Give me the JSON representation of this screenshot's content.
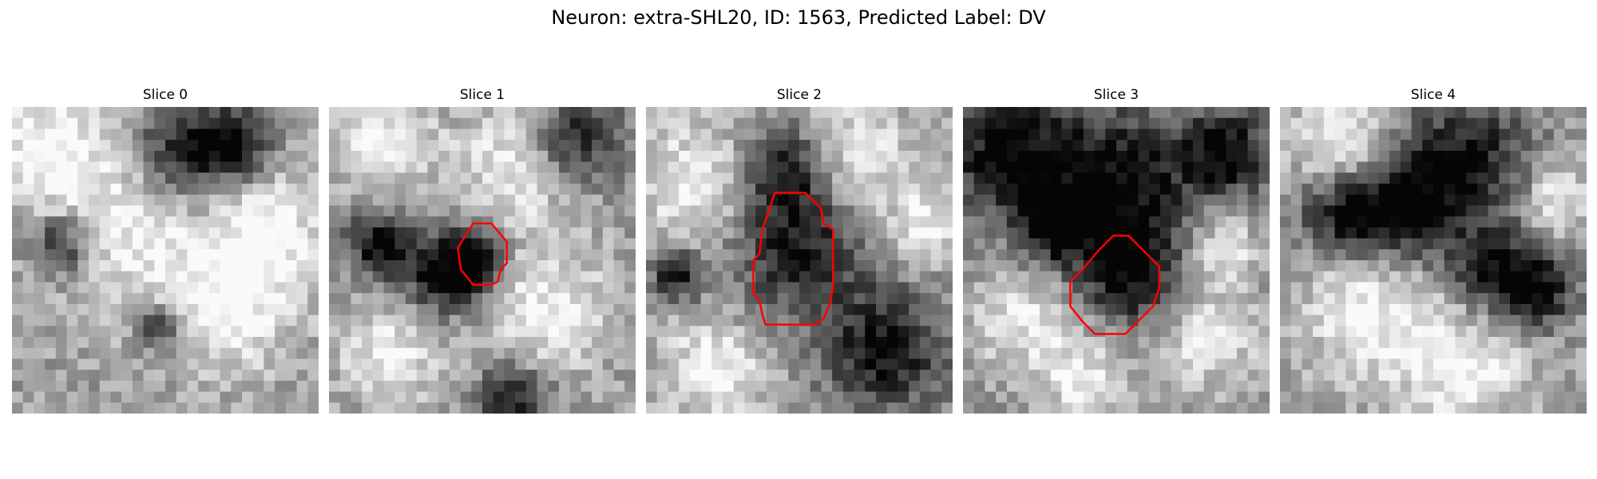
{
  "figure": {
    "title": "Neuron: extra-SHL20, ID: 1563, Predicted Label: DV"
  },
  "panels": [
    {
      "title": "Slice 0",
      "has_contour": false,
      "contour_color": "#ff0000",
      "dark_blobs": [
        [
          0.16,
          0.45,
          0.07
        ],
        [
          0.55,
          0.15,
          0.12
        ],
        [
          0.72,
          0.12,
          0.08
        ],
        [
          0.48,
          0.72,
          0.05
        ]
      ],
      "light_blobs": [
        [
          0.12,
          0.12,
          0.14
        ],
        [
          0.4,
          0.38,
          0.2
        ],
        [
          0.72,
          0.65,
          0.15
        ],
        [
          0.85,
          0.4,
          0.12
        ]
      ],
      "base": 0.62,
      "seed": 11
    },
    {
      "title": "Slice 1",
      "has_contour": true,
      "contour_color": "#ff0000",
      "dark_blobs": [
        [
          0.17,
          0.45,
          0.08
        ],
        [
          0.48,
          0.5,
          0.07
        ],
        [
          0.38,
          0.55,
          0.1
        ],
        [
          0.8,
          0.1,
          0.1
        ],
        [
          0.6,
          0.95,
          0.08
        ]
      ],
      "light_blobs": [
        [
          0.62,
          0.18,
          0.14
        ],
        [
          0.7,
          0.65,
          0.16
        ],
        [
          0.18,
          0.12,
          0.12
        ],
        [
          0.2,
          0.8,
          0.12
        ]
      ],
      "base": 0.6,
      "seed": 23
    },
    {
      "title": "Slice 2",
      "has_contour": true,
      "contour_color": "#ff0000",
      "dark_blobs": [
        [
          0.5,
          0.45,
          0.16
        ],
        [
          0.45,
          0.2,
          0.1
        ],
        [
          0.78,
          0.8,
          0.14
        ],
        [
          0.1,
          0.55,
          0.06
        ]
      ],
      "light_blobs": [
        [
          0.68,
          0.18,
          0.14
        ],
        [
          0.18,
          0.25,
          0.15
        ],
        [
          0.22,
          0.85,
          0.12
        ],
        [
          0.9,
          0.4,
          0.08
        ]
      ],
      "base": 0.62,
      "seed": 37
    },
    {
      "title": "Slice 3",
      "has_contour": true,
      "contour_color": "#ff0000",
      "dark_blobs": [
        [
          0.15,
          0.15,
          0.14
        ],
        [
          0.5,
          0.25,
          0.16
        ],
        [
          0.55,
          0.55,
          0.12
        ],
        [
          0.85,
          0.15,
          0.1
        ],
        [
          0.3,
          0.4,
          0.08
        ]
      ],
      "light_blobs": [
        [
          0.2,
          0.7,
          0.14
        ],
        [
          0.8,
          0.75,
          0.14
        ],
        [
          0.85,
          0.45,
          0.08
        ],
        [
          0.4,
          0.9,
          0.1
        ]
      ],
      "base": 0.55,
      "seed": 49
    },
    {
      "title": "Slice 4",
      "has_contour": false,
      "contour_color": "#ff0000",
      "dark_blobs": [
        [
          0.6,
          0.18,
          0.16
        ],
        [
          0.4,
          0.35,
          0.12
        ],
        [
          0.85,
          0.6,
          0.08
        ],
        [
          0.2,
          0.35,
          0.1
        ],
        [
          0.7,
          0.55,
          0.1
        ]
      ],
      "light_blobs": [
        [
          0.2,
          0.12,
          0.12
        ],
        [
          0.3,
          0.65,
          0.16
        ],
        [
          0.6,
          0.85,
          0.14
        ],
        [
          0.9,
          0.3,
          0.08
        ]
      ],
      "base": 0.62,
      "seed": 61
    }
  ]
}
